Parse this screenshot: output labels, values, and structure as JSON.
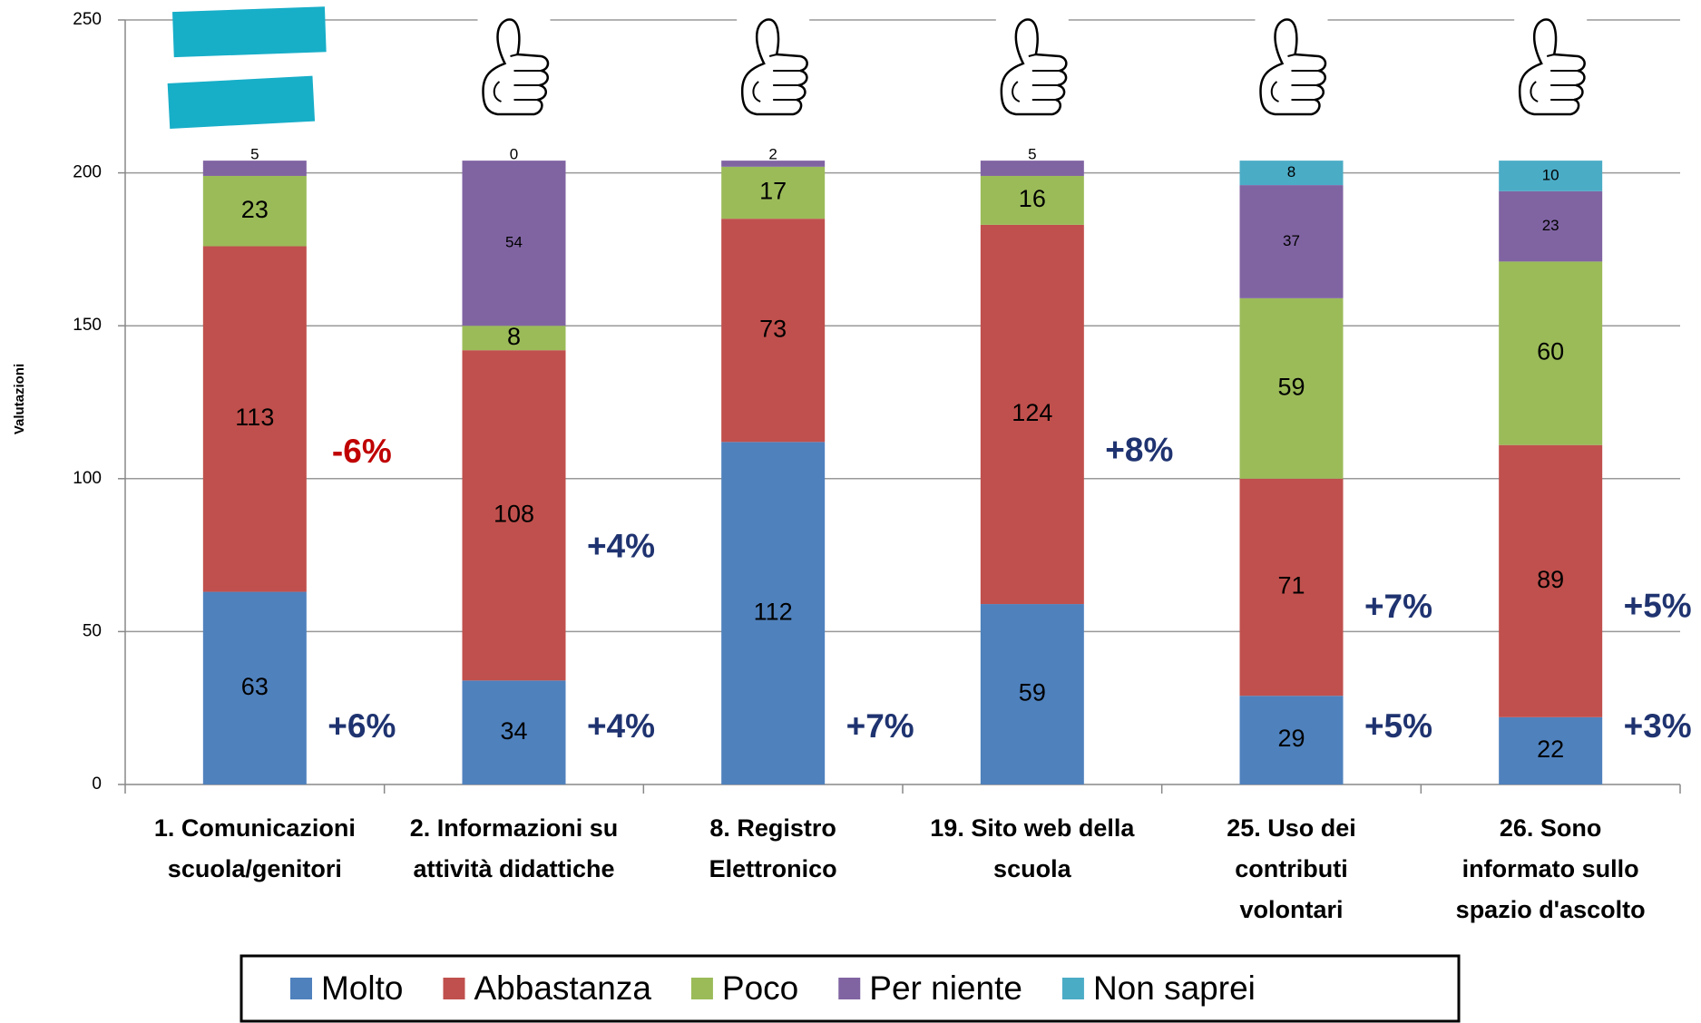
{
  "chart_data": {
    "type": "stacked_bar",
    "y_label": "Valutazioni",
    "categories": [
      [
        "1. Comunicazioni",
        "scuola/genitori"
      ],
      [
        "2. Informazioni su",
        "attività didattiche"
      ],
      [
        "8. Registro",
        "Elettronico"
      ],
      [
        "19. Sito web della",
        "scuola"
      ],
      [
        "25. Uso dei",
        "contributi",
        "volontari"
      ],
      [
        "26. Sono",
        "informato sullo",
        "spazio d'ascolto"
      ]
    ],
    "series": [
      {
        "name": "Molto",
        "color": "#4f81bd",
        "values": [
          63,
          34,
          112,
          59,
          29,
          22
        ]
      },
      {
        "name": "Abbastanza",
        "color": "#c0504d",
        "values": [
          113,
          108,
          73,
          124,
          71,
          89
        ]
      },
      {
        "name": "Poco",
        "color": "#9bbb59",
        "values": [
          23,
          8,
          17,
          16,
          59,
          60
        ]
      },
      {
        "name": "Per niente",
        "color": "#8064a2",
        "values": [
          5,
          54,
          2,
          5,
          37,
          23
        ]
      },
      {
        "name": "Non saprei",
        "color": "#4bacc6",
        "values": [
          null,
          0,
          null,
          null,
          8,
          10
        ]
      }
    ],
    "annotations": [
      {
        "text": "+6%",
        "category": 0,
        "series": 0,
        "color": "#1f3370"
      },
      {
        "text": "-6%",
        "category": 0,
        "series": 1,
        "color": "#c00000"
      },
      {
        "text": "+4%",
        "category": 1,
        "series": 0,
        "color": "#1f3370"
      },
      {
        "text": "+4%",
        "category": 1,
        "series": 1,
        "color": "#1f3370"
      },
      {
        "text": "+7%",
        "category": 2,
        "series": 0,
        "color": "#1f3370"
      },
      {
        "text": "+8%",
        "category": 3,
        "series": 1,
        "color": "#1f3370"
      },
      {
        "text": "+5%",
        "category": 4,
        "series": 0,
        "color": "#1f3370"
      },
      {
        "text": "+7%",
        "category": 4,
        "series": 1,
        "color": "#1f3370"
      },
      {
        "text": "+3%",
        "category": 5,
        "series": 0,
        "color": "#1f3370"
      },
      {
        "text": "+5%",
        "category": 5,
        "series": 1,
        "color": "#1f3370"
      }
    ],
    "icons": [
      "equal",
      "thumb",
      "thumb",
      "thumb",
      "thumb",
      "thumb"
    ],
    "ylim": [
      0,
      250
    ],
    "yticks": [
      0,
      50,
      100,
      150,
      200,
      250
    ],
    "grid": true,
    "legend": "bottom"
  }
}
